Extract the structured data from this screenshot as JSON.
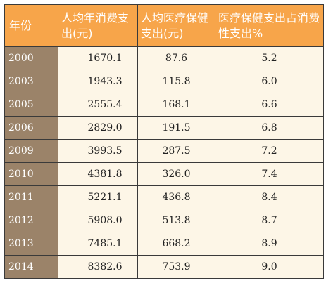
{
  "table": {
    "headers": {
      "year": "年份",
      "consumption": "人均年消费支出(元)",
      "healthcare": "人均医疗保健支出(元)",
      "ratio": "医疗保健支出占消费性支出%"
    },
    "rows": [
      {
        "year": "2000",
        "consumption": "1670.1",
        "healthcare": "87.6",
        "ratio": "5.2"
      },
      {
        "year": "2003",
        "consumption": "1943.3",
        "healthcare": "115.8",
        "ratio": "6.0"
      },
      {
        "year": "2005",
        "consumption": "2555.4",
        "healthcare": "168.1",
        "ratio": "6.6"
      },
      {
        "year": "2006",
        "consumption": "2829.0",
        "healthcare": "191.5",
        "ratio": "6.8"
      },
      {
        "year": "2009",
        "consumption": "3993.5",
        "healthcare": "287.5",
        "ratio": "7.2"
      },
      {
        "year": "2010",
        "consumption": "4381.8",
        "healthcare": "326.0",
        "ratio": "7.4"
      },
      {
        "year": "2011",
        "consumption": "5221.1",
        "healthcare": "436.8",
        "ratio": "8.4"
      },
      {
        "year": "2012",
        "consumption": "5908.0",
        "healthcare": "513.8",
        "ratio": "8.7"
      },
      {
        "year": "2013",
        "consumption": "7485.1",
        "healthcare": "668.2",
        "ratio": "8.9"
      },
      {
        "year": "2014",
        "consumption": "8382.6",
        "healthcare": "753.9",
        "ratio": "9.0"
      }
    ]
  },
  "colors": {
    "header_bg": "#f7a54a",
    "year_col_bg": "#9b8369",
    "cell_bg": "#fdf6e7",
    "border": "#3a3a3a"
  }
}
